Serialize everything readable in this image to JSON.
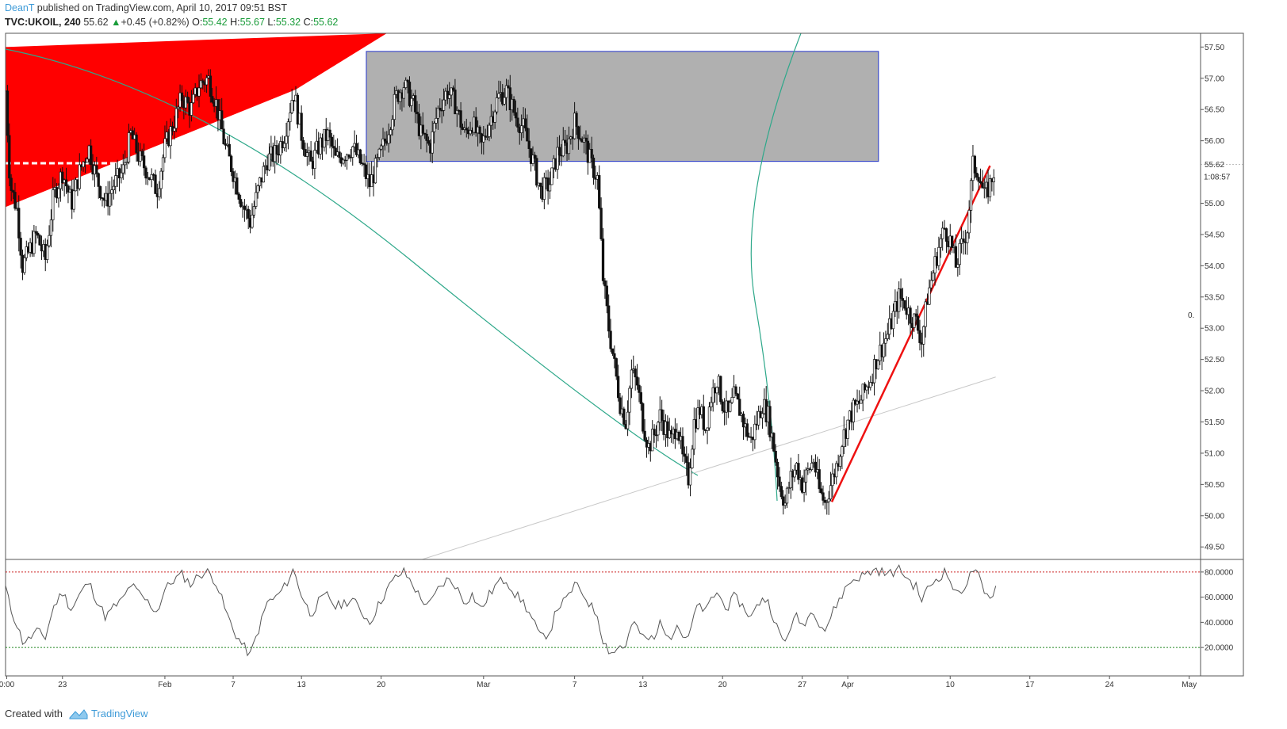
{
  "header": {
    "author": "DeanT",
    "published_text": " published on TradingView.com, April 10, 2017 09:51 BST",
    "symbol": "TVC:UKOIL, 240",
    "last": "55.62",
    "change": "+0.45 (+0.82%)",
    "open_label": "O:",
    "open": "55.42",
    "high_label": "H:",
    "high": "55.67",
    "low_label": "L:",
    "low": "55.32",
    "close_label": "C:",
    "close": "55.62"
  },
  "footer": {
    "created_with": "Created with",
    "brand": "TradingView"
  },
  "colors": {
    "up_arrow": "#1a9c3a",
    "wedge": "#ff0000",
    "zone_fill": "#b0b0b0",
    "zone_border": "#2233cc",
    "arc": "#2ea88a",
    "trend_red": "#ee1111",
    "rsi_line": "#555555"
  },
  "chart_data": {
    "type": "candlestick",
    "symbol": "TVC:UKOIL",
    "interval": "240",
    "price_axis": {
      "ylim": [
        49.3,
        57.72
      ],
      "ticks": [
        "57.50",
        "57.00",
        "56.50",
        "56.00",
        "55.00",
        "54.50",
        "54.00",
        "53.50",
        "53.00",
        "52.50",
        "52.00",
        "51.50",
        "51.00",
        "50.50",
        "50.00",
        "49.50"
      ],
      "last_price_label": "55.62",
      "countdown_label": "1:08:57",
      "stray_label": "0."
    },
    "time_axis": {
      "labels": [
        {
          "label": "0:00",
          "day": -4.9
        },
        {
          "label": "23",
          "day": 0
        },
        {
          "label": "Feb",
          "day": 9
        },
        {
          "label": "7",
          "day": 15
        },
        {
          "label": "13",
          "day": 21
        },
        {
          "label": "20",
          "day": 28
        },
        {
          "label": "Mar",
          "day": 37
        },
        {
          "label": "7",
          "day": 45
        },
        {
          "label": "13",
          "day": 51
        },
        {
          "label": "20",
          "day": 58
        },
        {
          "label": "27",
          "day": 65
        },
        {
          "label": "Apr",
          "day": 69
        },
        {
          "label": "10",
          "day": 78
        },
        {
          "label": "17",
          "day": 85
        },
        {
          "label": "24",
          "day": 92
        },
        {
          "label": "May",
          "day": 99
        }
      ]
    },
    "price_path": [
      [
        -5,
        56.8
      ],
      [
        -4.6,
        55.3
      ],
      [
        -4,
        54.9
      ],
      [
        -3.5,
        54.0
      ],
      [
        -3,
        54.2
      ],
      [
        -2.3,
        54.5
      ],
      [
        -1.5,
        54.1
      ],
      [
        -0.8,
        55.1
      ],
      [
        0,
        55.5
      ],
      [
        0.8,
        55.0
      ],
      [
        1.5,
        55.5
      ],
      [
        2.3,
        55.9
      ],
      [
        3,
        55.4
      ],
      [
        3.8,
        55.0
      ],
      [
        4.5,
        55.3
      ],
      [
        5.3,
        55.5
      ],
      [
        6,
        56.1
      ],
      [
        6.8,
        55.7
      ],
      [
        7.5,
        55.5
      ],
      [
        8.3,
        55.2
      ],
      [
        9,
        55.9
      ],
      [
        9.8,
        56.3
      ],
      [
        10.5,
        56.7
      ],
      [
        11.3,
        56.5
      ],
      [
        12,
        56.9
      ],
      [
        12.8,
        57.0
      ],
      [
        13.5,
        56.6
      ],
      [
        14.3,
        55.9
      ],
      [
        15,
        55.5
      ],
      [
        15.8,
        55.0
      ],
      [
        16.5,
        54.7
      ],
      [
        17.3,
        55.3
      ],
      [
        18,
        55.7
      ],
      [
        18.8,
        55.8
      ],
      [
        19.5,
        56.1
      ],
      [
        20.3,
        56.8
      ],
      [
        21,
        56.1
      ],
      [
        21.8,
        55.6
      ],
      [
        22.5,
        55.9
      ],
      [
        23.3,
        56.1
      ],
      [
        24,
        55.7
      ],
      [
        24.8,
        55.8
      ],
      [
        25.5,
        55.9
      ],
      [
        26.3,
        55.6
      ],
      [
        27,
        55.3
      ],
      [
        27.8,
        55.7
      ],
      [
        28.5,
        56.1
      ],
      [
        29.3,
        56.7
      ],
      [
        30,
        56.9
      ],
      [
        30.8,
        56.6
      ],
      [
        31.5,
        56.1
      ],
      [
        32.3,
        55.9
      ],
      [
        33,
        56.5
      ],
      [
        33.8,
        56.8
      ],
      [
        34.5,
        56.6
      ],
      [
        35.3,
        56.1
      ],
      [
        36,
        56.3
      ],
      [
        36.8,
        55.9
      ],
      [
        37.5,
        56.3
      ],
      [
        38.3,
        56.7
      ],
      [
        39,
        56.8
      ],
      [
        39.8,
        56.4
      ],
      [
        40.5,
        56.2
      ],
      [
        41.3,
        55.7
      ],
      [
        42,
        55.2
      ],
      [
        42.8,
        55.3
      ],
      [
        43.5,
        55.8
      ],
      [
        44.3,
        55.9
      ],
      [
        45,
        56.3
      ],
      [
        45.8,
        56.0
      ],
      [
        46.5,
        55.6
      ],
      [
        47,
        55.4
      ],
      [
        47.5,
        53.8
      ],
      [
        48,
        53.0
      ],
      [
        48.5,
        52.4
      ],
      [
        49,
        51.8
      ],
      [
        49.5,
        51.5
      ],
      [
        50,
        52.3
      ],
      [
        50.5,
        52.1
      ],
      [
        51,
        51.5
      ],
      [
        51.5,
        51.1
      ],
      [
        52,
        51.3
      ],
      [
        52.5,
        51.6
      ],
      [
        53,
        51.4
      ],
      [
        53.5,
        51.2
      ],
      [
        54,
        51.5
      ],
      [
        54.5,
        50.9
      ],
      [
        55,
        50.6
      ],
      [
        55.5,
        51.5
      ],
      [
        56,
        51.7
      ],
      [
        56.5,
        51.4
      ],
      [
        57,
        51.9
      ],
      [
        57.5,
        52.2
      ],
      [
        58,
        51.8
      ],
      [
        58.5,
        51.6
      ],
      [
        59,
        51.9
      ],
      [
        59.5,
        51.7
      ],
      [
        60,
        51.4
      ],
      [
        60.5,
        51.2
      ],
      [
        61,
        51.5
      ],
      [
        61.5,
        51.8
      ],
      [
        62,
        51.6
      ],
      [
        62.5,
        51.1
      ],
      [
        63,
        50.5
      ],
      [
        63.5,
        50.2
      ],
      [
        64,
        50.6
      ],
      [
        64.5,
        50.8
      ],
      [
        65,
        50.5
      ],
      [
        65.5,
        50.7
      ],
      [
        66,
        50.9
      ],
      [
        66.5,
        50.4
      ],
      [
        67,
        50.2
      ],
      [
        67.5,
        50.5
      ],
      [
        68,
        50.8
      ],
      [
        68.5,
        51.2
      ],
      [
        69,
        51.5
      ],
      [
        69.5,
        51.7
      ],
      [
        70,
        51.8
      ],
      [
        70.5,
        52.0
      ],
      [
        71,
        52.2
      ],
      [
        71.5,
        52.5
      ],
      [
        72,
        52.7
      ],
      [
        72.5,
        52.9
      ],
      [
        73,
        53.2
      ],
      [
        73.5,
        53.5
      ],
      [
        74,
        53.4
      ],
      [
        74.5,
        53.2
      ],
      [
        75,
        53.1
      ],
      [
        75.5,
        52.8
      ],
      [
        76,
        53.5
      ],
      [
        76.5,
        53.9
      ],
      [
        77,
        54.3
      ],
      [
        77.5,
        54.6
      ],
      [
        78,
        54.4
      ],
      [
        78.5,
        54.0
      ],
      [
        79,
        54.3
      ],
      [
        79.5,
        54.6
      ],
      [
        80,
        55.6
      ],
      [
        80.5,
        55.5
      ],
      [
        81,
        55.1
      ],
      [
        81.5,
        55.3
      ],
      [
        82,
        55.62
      ]
    ],
    "rsi": {
      "panel": "RSI",
      "ylim": [
        10,
        90
      ],
      "ticks": [
        "80.0000",
        "60.0000",
        "40.0000",
        "20.0000"
      ],
      "overbought": 80,
      "oversold": 20,
      "values": [
        [
          -5,
          68
        ],
        [
          -4.6,
          52
        ],
        [
          -4,
          38
        ],
        [
          -3.5,
          25
        ],
        [
          -3,
          26
        ],
        [
          -2.3,
          33
        ],
        [
          -1.5,
          28
        ],
        [
          -0.8,
          52
        ],
        [
          0,
          64
        ],
        [
          0.8,
          50
        ],
        [
          1.5,
          62
        ],
        [
          2.3,
          72
        ],
        [
          3,
          58
        ],
        [
          3.8,
          44
        ],
        [
          4.5,
          52
        ],
        [
          5.3,
          58
        ],
        [
          6,
          70
        ],
        [
          6.8,
          62
        ],
        [
          7.5,
          56
        ],
        [
          8.3,
          48
        ],
        [
          9,
          66
        ],
        [
          9.8,
          74
        ],
        [
          10.5,
          78
        ],
        [
          11.3,
          70
        ],
        [
          12,
          78
        ],
        [
          12.8,
          80
        ],
        [
          13.5,
          72
        ],
        [
          14.3,
          50
        ],
        [
          15,
          34
        ],
        [
          15.8,
          22
        ],
        [
          16.5,
          14
        ],
        [
          17.3,
          36
        ],
        [
          18,
          56
        ],
        [
          18.8,
          60
        ],
        [
          19.5,
          68
        ],
        [
          20.3,
          82
        ],
        [
          21,
          62
        ],
        [
          21.8,
          46
        ],
        [
          22.5,
          56
        ],
        [
          23.3,
          62
        ],
        [
          24,
          52
        ],
        [
          24.8,
          56
        ],
        [
          25.5,
          58
        ],
        [
          26.3,
          48
        ],
        [
          27,
          40
        ],
        [
          27.8,
          54
        ],
        [
          28.5,
          66
        ],
        [
          29.3,
          76
        ],
        [
          30,
          80
        ],
        [
          30.8,
          70
        ],
        [
          31.5,
          58
        ],
        [
          32.3,
          54
        ],
        [
          33,
          66
        ],
        [
          33.8,
          74
        ],
        [
          34.5,
          70
        ],
        [
          35.3,
          56
        ],
        [
          36,
          62
        ],
        [
          36.8,
          50
        ],
        [
          37.5,
          62
        ],
        [
          38.3,
          72
        ],
        [
          39,
          74
        ],
        [
          39.8,
          62
        ],
        [
          40.5,
          56
        ],
        [
          41.3,
          42
        ],
        [
          42,
          28
        ],
        [
          42.8,
          32
        ],
        [
          43.5,
          52
        ],
        [
          44.3,
          58
        ],
        [
          45,
          70
        ],
        [
          45.8,
          62
        ],
        [
          46.5,
          52
        ],
        [
          47,
          46
        ],
        [
          47.5,
          26
        ],
        [
          48,
          18
        ],
        [
          48.5,
          16
        ],
        [
          49,
          22
        ],
        [
          49.5,
          20
        ],
        [
          50,
          38
        ],
        [
          50.5,
          36
        ],
        [
          51,
          28
        ],
        [
          51.5,
          26
        ],
        [
          52,
          30
        ],
        [
          52.5,
          38
        ],
        [
          53,
          34
        ],
        [
          53.5,
          30
        ],
        [
          54,
          38
        ],
        [
          54.5,
          30
        ],
        [
          55,
          26
        ],
        [
          55.5,
          46
        ],
        [
          56,
          54
        ],
        [
          56.5,
          48
        ],
        [
          57,
          58
        ],
        [
          57.5,
          64
        ],
        [
          58,
          56
        ],
        [
          58.5,
          52
        ],
        [
          59,
          60
        ],
        [
          59.5,
          56
        ],
        [
          60,
          50
        ],
        [
          60.5,
          44
        ],
        [
          61,
          52
        ],
        [
          61.5,
          60
        ],
        [
          62,
          56
        ],
        [
          62.5,
          44
        ],
        [
          63,
          30
        ],
        [
          63.5,
          24
        ],
        [
          64,
          38
        ],
        [
          64.5,
          44
        ],
        [
          65,
          38
        ],
        [
          65.5,
          44
        ],
        [
          66,
          50
        ],
        [
          66.5,
          40
        ],
        [
          67,
          34
        ],
        [
          67.5,
          44
        ],
        [
          68,
          54
        ],
        [
          68.5,
          62
        ],
        [
          69,
          70
        ],
        [
          69.5,
          74
        ],
        [
          70,
          76
        ],
        [
          70.5,
          78
        ],
        [
          71,
          80
        ],
        [
          71.5,
          82
        ],
        [
          72,
          80
        ],
        [
          72.5,
          78
        ],
        [
          73,
          80
        ],
        [
          73.5,
          82
        ],
        [
          74,
          78
        ],
        [
          74.5,
          72
        ],
        [
          75,
          68
        ],
        [
          75.5,
          58
        ],
        [
          76,
          66
        ],
        [
          76.5,
          72
        ],
        [
          77,
          76
        ],
        [
          77.5,
          80
        ],
        [
          78,
          74
        ],
        [
          78.5,
          62
        ],
        [
          79,
          66
        ],
        [
          79.5,
          72
        ],
        [
          80,
          82
        ],
        [
          80.5,
          76
        ],
        [
          81,
          62
        ],
        [
          81.5,
          60
        ],
        [
          82,
          68
        ]
      ]
    },
    "drawings": [
      {
        "type": "red-wedge",
        "from_day": -5,
        "to_day": 20.5,
        "lower_price": [
          54.94,
          56.82
        ],
        "upper_price": [
          57.5,
          57.72
        ]
      },
      {
        "type": "resistance-zone",
        "from_day": 26.7,
        "to_day": 71.7,
        "price_low": 55.67,
        "price_high": 57.43
      },
      {
        "type": "dashed-level",
        "from_day": -5,
        "to_day": 6,
        "price": 55.64
      },
      {
        "type": "trendline-red",
        "from": [
          67.6,
          50.22
        ],
        "to": [
          81.5,
          55.6
        ]
      },
      {
        "type": "support-line",
        "from": [
          31.6,
          49.3
        ],
        "to": [
          82,
          52.22
        ]
      }
    ]
  }
}
